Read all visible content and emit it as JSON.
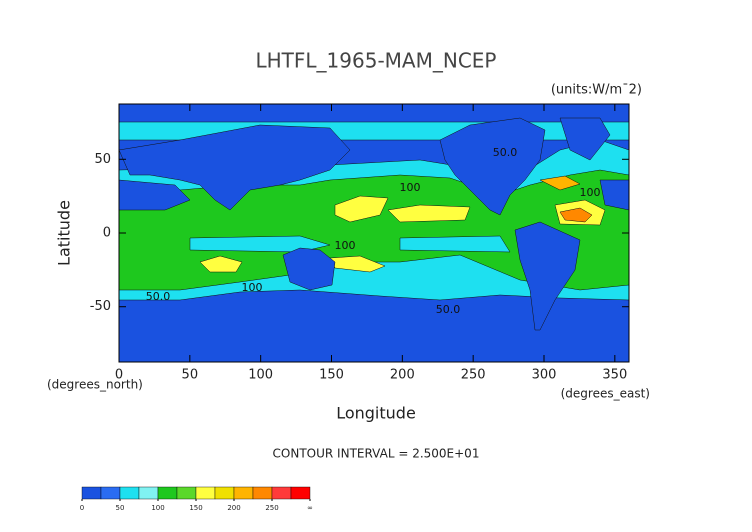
{
  "chart_data": {
    "type": "contour",
    "title": "LHTFL_1965-MAM_NCEP",
    "subtitle": "(units:W/m¯2)",
    "x_label": "Longitude",
    "y_label": "Latitude",
    "x_unit_label": "(degrees_east)",
    "y_unit_label": "(degrees_north)",
    "footnote": "CONTOUR INTERVAL = 2.500E+01",
    "xlim": [
      0,
      360
    ],
    "xticks": [
      0,
      50,
      100,
      150,
      200,
      250,
      300,
      350
    ],
    "ylim": [
      -87.5,
      87.5
    ],
    "yticks": [
      -50,
      0,
      50
    ],
    "contour_labels": [
      "100",
      "100",
      "100",
      "100",
      "50.0",
      "50.0",
      "50.0"
    ],
    "colorbar": {
      "lim": [
        0,
        300
      ],
      "ticks": [
        0,
        50,
        100,
        150,
        200,
        250,
        {
          "value": 300,
          "label": "∞"
        }
      ],
      "colors": [
        "#1a52e0",
        "#2a6cf2",
        "#1ee0f0",
        "#80f2f2",
        "#1ec81e",
        "#5ad82a",
        "#ffff40",
        "#f0e000",
        "#ffb400",
        "#ff8800",
        "#ff3a3a",
        "#ff0000"
      ]
    }
  }
}
